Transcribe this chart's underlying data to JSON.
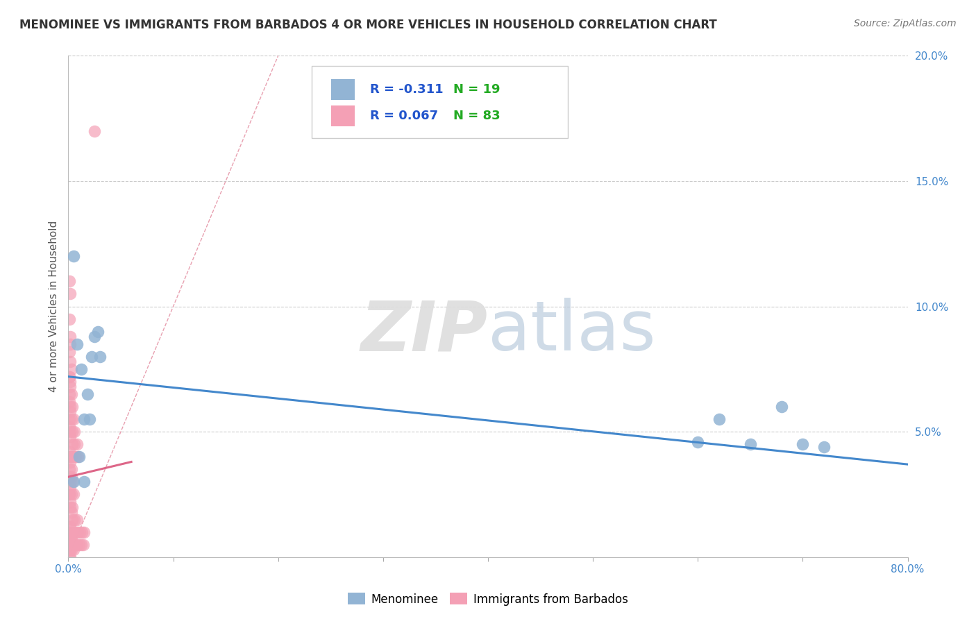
{
  "title": "MENOMINEE VS IMMIGRANTS FROM BARBADOS 4 OR MORE VEHICLES IN HOUSEHOLD CORRELATION CHART",
  "source": "Source: ZipAtlas.com",
  "ylabel": "4 or more Vehicles in Household",
  "xlim": [
    0.0,
    0.8
  ],
  "ylim": [
    0.0,
    0.2
  ],
  "xticks": [
    0.0,
    0.1,
    0.2,
    0.3,
    0.4,
    0.5,
    0.6,
    0.7,
    0.8
  ],
  "yticks": [
    0.0,
    0.05,
    0.1,
    0.15,
    0.2
  ],
  "xticklabels_show": [
    "0.0%",
    "80.0%"
  ],
  "xticklabels_show_vals": [
    0.0,
    0.8
  ],
  "yticklabels": [
    "",
    "5.0%",
    "10.0%",
    "15.0%",
    "20.0%"
  ],
  "menominee_color": "#92b4d4",
  "barbados_color": "#f4a0b5",
  "menominee_r": -0.311,
  "menominee_n": 19,
  "barbados_r": 0.067,
  "barbados_n": 83,
  "legend_r_color": "#2255cc",
  "legend_n_color": "#22aa22",
  "background_color": "#ffffff",
  "grid_color": "#cccccc",
  "title_color": "#333333",
  "menominee_scatter_x": [
    0.008,
    0.012,
    0.018,
    0.022,
    0.028,
    0.015,
    0.025,
    0.005,
    0.03,
    0.02,
    0.01,
    0.6,
    0.65,
    0.7,
    0.72,
    0.68,
    0.62,
    0.005,
    0.015
  ],
  "menominee_scatter_y": [
    0.085,
    0.075,
    0.065,
    0.08,
    0.09,
    0.055,
    0.088,
    0.12,
    0.08,
    0.055,
    0.04,
    0.046,
    0.045,
    0.045,
    0.044,
    0.06,
    0.055,
    0.03,
    0.03
  ],
  "barbados_scatter_x": [
    0.002,
    0.004,
    0.006,
    0.008,
    0.01,
    0.012,
    0.014,
    0.001,
    0.003,
    0.005,
    0.007,
    0.009,
    0.011,
    0.013,
    0.015,
    0.004,
    0.006,
    0.008,
    0.002,
    0.004,
    0.001,
    0.003,
    0.005,
    0.002,
    0.004,
    0.001,
    0.003,
    0.002,
    0.001,
    0.003,
    0.005,
    0.007,
    0.009,
    0.004,
    0.006,
    0.008,
    0.002,
    0.004,
    0.006,
    0.001,
    0.003,
    0.005,
    0.002,
    0.004,
    0.001,
    0.003,
    0.002,
    0.001,
    0.003,
    0.002,
    0.001,
    0.003,
    0.005,
    0.002,
    0.004,
    0.001,
    0.003,
    0.002,
    0.001,
    0.003,
    0.002,
    0.001,
    0.002,
    0.001,
    0.003,
    0.002,
    0.001,
    0.002,
    0.001,
    0.002,
    0.001,
    0.002,
    0.001,
    0.002,
    0.001,
    0.002,
    0.001,
    0.002,
    0.025,
    0.001,
    0.002,
    0.001,
    0.002
  ],
  "barbados_scatter_y": [
    0.005,
    0.005,
    0.005,
    0.005,
    0.005,
    0.005,
    0.005,
    0.01,
    0.01,
    0.01,
    0.01,
    0.01,
    0.01,
    0.01,
    0.01,
    0.015,
    0.015,
    0.015,
    0.02,
    0.02,
    0.025,
    0.025,
    0.025,
    0.03,
    0.03,
    0.035,
    0.035,
    0.04,
    0.04,
    0.04,
    0.04,
    0.04,
    0.04,
    0.045,
    0.045,
    0.045,
    0.05,
    0.05,
    0.05,
    0.055,
    0.055,
    0.055,
    0.06,
    0.06,
    0.065,
    0.065,
    0.07,
    0.072,
    0.075,
    0.003,
    0.003,
    0.003,
    0.003,
    0.006,
    0.006,
    0.008,
    0.008,
    0.012,
    0.012,
    0.018,
    0.022,
    0.025,
    0.028,
    0.032,
    0.032,
    0.038,
    0.042,
    0.048,
    0.052,
    0.058,
    0.062,
    0.068,
    0.072,
    0.078,
    0.082,
    0.088,
    0.0,
    0.0,
    0.17,
    0.11,
    0.085,
    0.095,
    0.105
  ],
  "menominee_line_x": [
    0.0,
    0.8
  ],
  "menominee_line_y": [
    0.072,
    0.037
  ],
  "barbados_line_x": [
    0.0,
    0.06
  ],
  "barbados_line_y": [
    0.032,
    0.038
  ],
  "ref_line_x": [
    0.0,
    0.2
  ],
  "ref_line_y": [
    0.0,
    0.2
  ],
  "ref_line_color": "#e8a0b0",
  "ref_line_style": "--"
}
